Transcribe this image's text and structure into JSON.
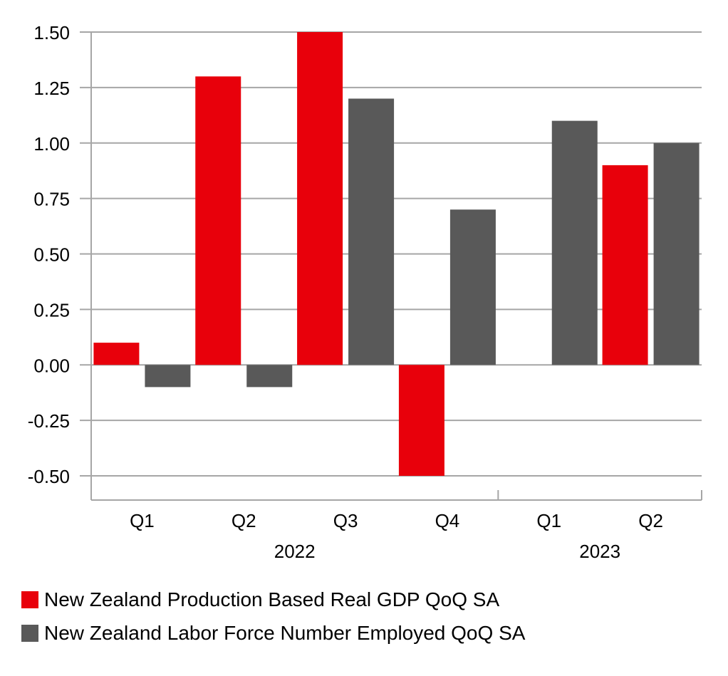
{
  "chart_data": {
    "type": "bar",
    "categories": [
      "Q1",
      "Q2",
      "Q3",
      "Q4",
      "Q1",
      "Q2"
    ],
    "groups": [
      {
        "label": "2022",
        "categories": [
          "Q1",
          "Q2",
          "Q3",
          "Q4"
        ]
      },
      {
        "label": "2023",
        "categories": [
          "Q1",
          "Q2"
        ]
      }
    ],
    "series": [
      {
        "name": "New Zealand Production Based Real GDP QoQ SA",
        "color": "#e8000b",
        "values": [
          0.1,
          1.3,
          1.5,
          -0.5,
          null,
          0.9
        ]
      },
      {
        "name": "New Zealand Labor Force Number Employed QoQ SA",
        "color": "#595959",
        "values": [
          -0.1,
          -0.1,
          1.2,
          0.7,
          1.1,
          1.0
        ]
      }
    ],
    "ylim": [
      -0.5,
      1.5
    ],
    "yticks": [
      "1.50",
      "1.25",
      "1.00",
      "0.75",
      "0.50",
      "0.25",
      "0.00",
      "-0.25",
      "-0.50"
    ],
    "grid": true,
    "legend_position": "bottom-left"
  }
}
